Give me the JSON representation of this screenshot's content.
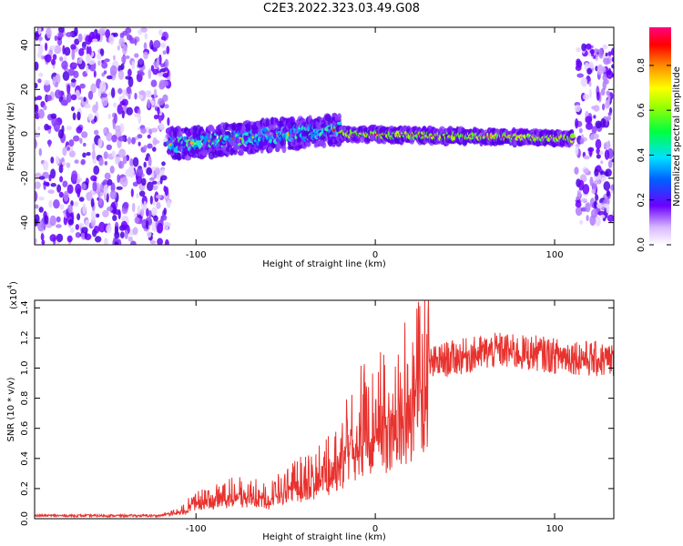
{
  "title": "C2E3.2022.323.03.49.G08",
  "chart_data": [
    {
      "type": "heatmap",
      "title": "C2E3.2022.323.03.49.G08",
      "xlabel": "Height of straight line (km)",
      "ylabel": "Frequency (Hz)",
      "xlim": [
        -190,
        133
      ],
      "ylim": [
        -50,
        48
      ],
      "xticks": [
        -100,
        0,
        100
      ],
      "yticks": [
        -40,
        -20,
        0,
        20,
        40
      ],
      "colorbar": {
        "label": "Normalized spectral amplitude",
        "range": [
          0.0,
          0.97
        ],
        "ticks": [
          "0.0",
          "0.2",
          "0.4",
          "0.6",
          "0.8"
        ]
      },
      "features": [
        {
          "segment": "noise",
          "x": [
            -190,
            -115
          ],
          "frequency_range_hz": [
            -50,
            48
          ]
        },
        {
          "segment": "trace",
          "x": [
            -115,
            -20
          ],
          "frequency_hz": [
            -5,
            2
          ]
        },
        {
          "segment": "trace",
          "x": [
            -20,
            110
          ],
          "frequency_hz": [
            0,
            -2
          ]
        },
        {
          "segment": "noise",
          "x": [
            112,
            133
          ],
          "frequency_range_hz": [
            -40,
            40
          ]
        }
      ]
    },
    {
      "type": "line",
      "xlabel": "Height of straight line (km)",
      "ylabel": "SNR (10 * v/v)",
      "y_multiplier": "(x10",
      "y_multiplier_exp": "4",
      "xlim": [
        -190,
        133
      ],
      "ylim": [
        0,
        1.45
      ],
      "xticks": [
        -100,
        0,
        100
      ],
      "yticks": [
        "0.0",
        "0.2",
        "0.4",
        "0.6",
        "0.8",
        "1.0",
        "1.2",
        "1.4"
      ],
      "color": "#e8322e",
      "series": [
        {
          "x": [
            -190,
            -120,
            -110,
            -100,
            -90,
            -80,
            -70,
            -60,
            -50,
            -40,
            -30,
            -20,
            -10,
            0,
            10,
            20,
            30,
            40,
            50,
            60,
            70,
            80,
            90,
            100,
            110,
            120,
            133
          ],
          "values": [
            0.02,
            0.02,
            0.05,
            0.12,
            0.15,
            0.18,
            0.18,
            0.15,
            0.22,
            0.28,
            0.35,
            0.45,
            0.65,
            0.72,
            0.75,
            0.9,
            1.02,
            1.06,
            1.08,
            1.1,
            1.12,
            1.1,
            1.1,
            1.08,
            1.08,
            1.06,
            1.05
          ]
        }
      ]
    }
  ]
}
